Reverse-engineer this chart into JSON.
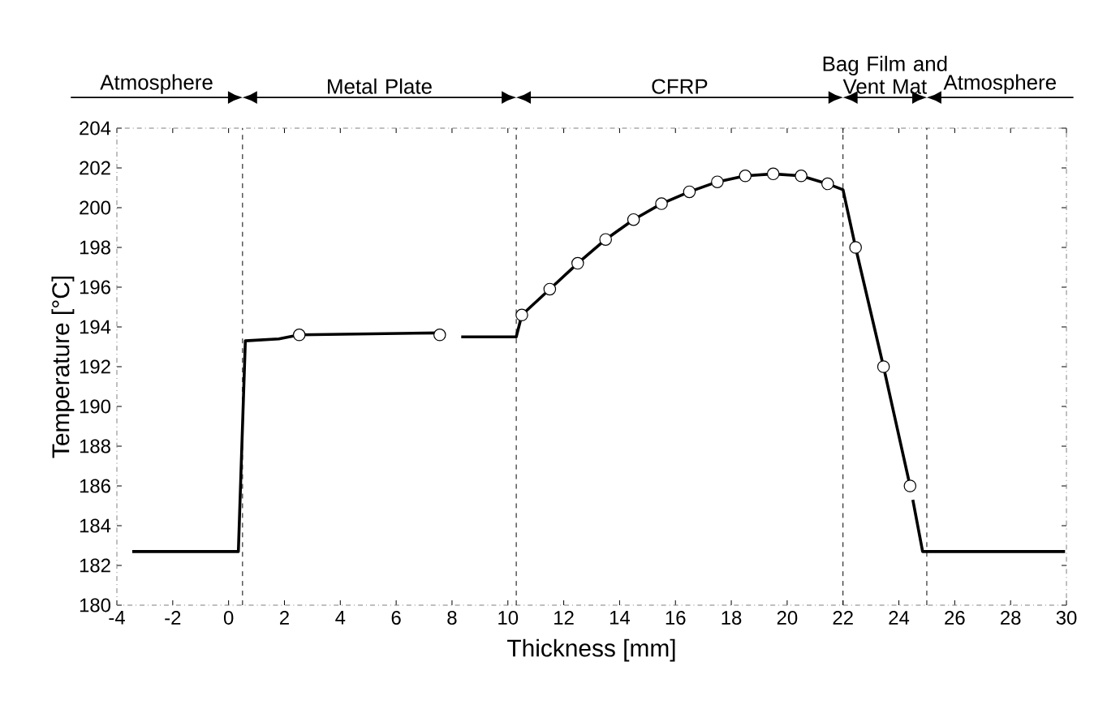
{
  "chart_data": {
    "type": "line",
    "xlabel": "Thickness [mm]",
    "ylabel": "Temperature [°C]",
    "xlim": [
      -4,
      30
    ],
    "ylim": [
      180,
      204
    ],
    "xticks": [
      -4,
      -2,
      0,
      2,
      4,
      6,
      8,
      10,
      12,
      14,
      16,
      18,
      20,
      22,
      24,
      26,
      28,
      30
    ],
    "yticks": [
      180,
      182,
      184,
      186,
      188,
      190,
      192,
      194,
      196,
      198,
      200,
      202,
      204
    ],
    "grid": false,
    "series": [
      {
        "color": "#000000",
        "marker": "none",
        "line_style": "solid",
        "x": [
          -3.45,
          0.35,
          0.6,
          1.8,
          2.53,
          7.56,
          7.9,
          8.33,
          10.3,
          10.5,
          11.5,
          12.5,
          13.5,
          14.5,
          15.5,
          16.5,
          17.5,
          18.5,
          19.5,
          20.5,
          21.45,
          22.0,
          22.45,
          23.45,
          24.4,
          24.45,
          24.5,
          24.85,
          29.95
        ],
        "values": [
          182.7,
          182.7,
          193.3,
          193.4,
          193.6,
          193.7,
          null,
          193.5,
          193.5,
          194.6,
          195.9,
          197.2,
          198.4,
          199.4,
          200.2,
          200.8,
          201.3,
          201.6,
          201.7,
          201.6,
          201.2,
          200.9,
          198.0,
          192.0,
          186.0,
          null,
          185.3,
          182.7,
          182.7
        ]
      },
      {
        "type": "scatter",
        "color": "#000000",
        "marker": "circle",
        "x": [
          2.53,
          7.56,
          10.5,
          11.5,
          12.5,
          13.5,
          14.5,
          15.5,
          16.5,
          17.5,
          18.5,
          19.5,
          20.5,
          21.45,
          22.45,
          23.45,
          24.4
        ],
        "values": [
          193.6,
          193.6,
          194.6,
          195.9,
          197.2,
          198.4,
          199.4,
          200.2,
          200.8,
          201.3,
          201.6,
          201.7,
          201.6,
          201.2,
          198.0,
          192.0,
          186.0
        ]
      }
    ],
    "ref_lines": [
      {
        "axis": "x",
        "value": 0.5,
        "line_style": "dashed"
      },
      {
        "axis": "x",
        "value": 10.3,
        "line_style": "dashed"
      },
      {
        "axis": "x",
        "value": 22,
        "line_style": "dashed"
      },
      {
        "axis": "x",
        "value": 25,
        "line_style": "dashed"
      }
    ],
    "annotations": [
      "Atmosphere",
      "Metal Plate",
      "CFRP",
      "Bag Film and Vent Mat",
      "Atmosphere"
    ]
  }
}
